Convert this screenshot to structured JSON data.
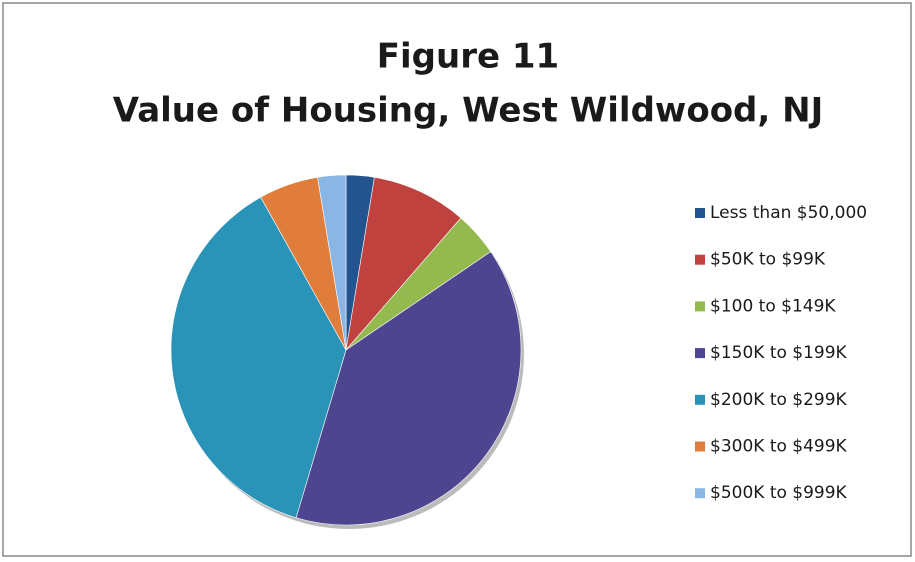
{
  "chart_data": {
    "type": "pie",
    "title": "Figure 11",
    "subtitle": "Value of Housing, West Wildwood, NJ",
    "categories": [
      "Less than $50,000",
      "$50K to $99K",
      "$100 to $149K",
      "$150K to $199K",
      "$200K to $299K",
      "$300K to $499K",
      "$500K to $999K"
    ],
    "values": [
      2.6,
      8.8,
      4.1,
      39.1,
      37.3,
      5.5,
      2.6
    ],
    "colors": [
      "#24548f",
      "#c0423f",
      "#93b94f",
      "#4e4590",
      "#2a93b8",
      "#e07d3a",
      "#8ab6e6"
    ],
    "legend": "right"
  }
}
